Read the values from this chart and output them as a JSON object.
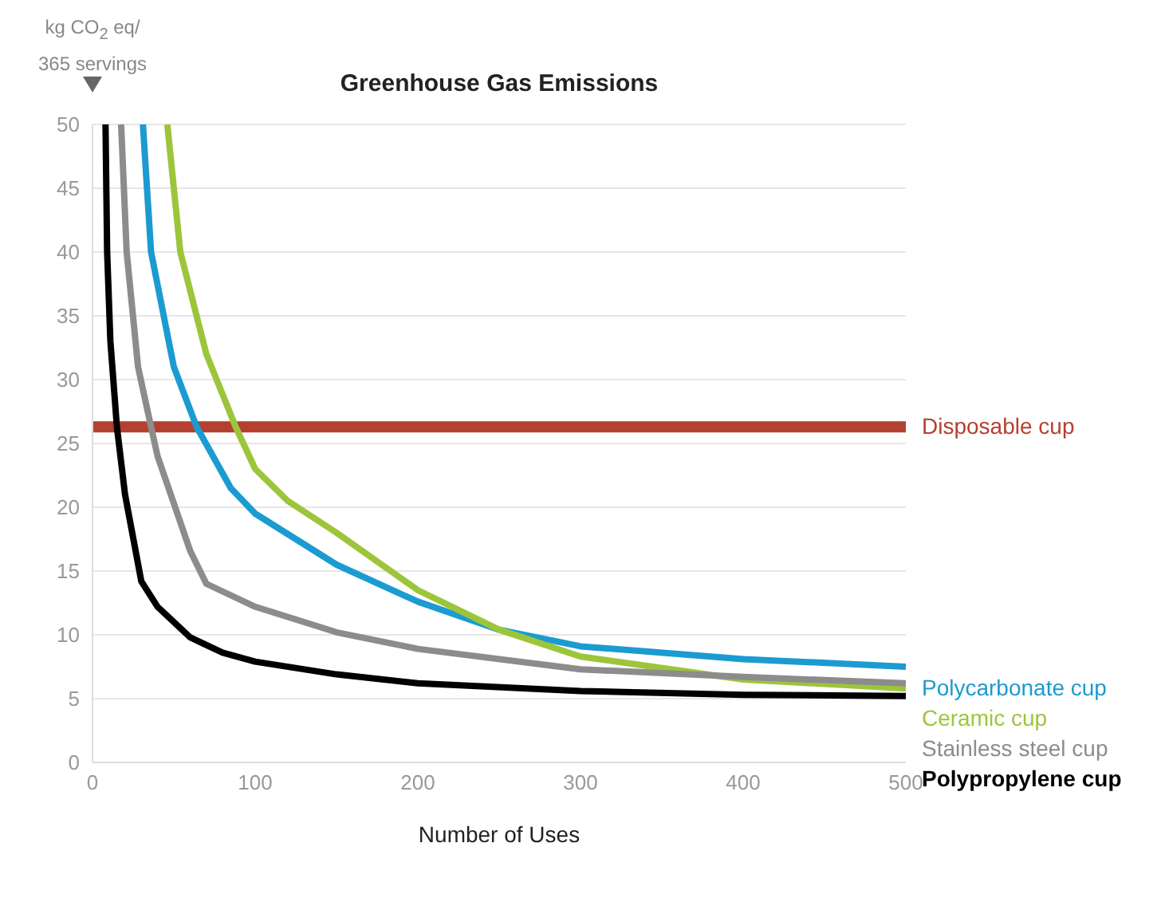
{
  "chart_data": {
    "type": "line",
    "title": "Greenhouse Gas Emissions",
    "xlabel": "Number of Uses",
    "ylabel": "kg CO$_{2}$ eq/365 servings",
    "xlim": [
      0,
      500
    ],
    "xticks": [
      0,
      100,
      200,
      300,
      400,
      500
    ],
    "ylim": [
      0,
      50
    ],
    "yticks": [
      0,
      5,
      10,
      15,
      20,
      25,
      30,
      35,
      40,
      45,
      50
    ],
    "grid": "y",
    "line_style": "solid",
    "marker": "none",
    "ref_lines": [
      {
        "axis": "y",
        "value": 26.3,
        "label": "Disposable cup",
        "color": "#b5402f"
      }
    ],
    "series": [
      {
        "name": "Polycarbonate cup",
        "color": "#1b9bd1",
        "x": [
          31,
          36,
          50,
          64,
          85,
          100,
          150,
          200,
          250,
          300,
          400,
          500
        ],
        "values": [
          50,
          40,
          31,
          26.3,
          21.5,
          19.5,
          15.5,
          12.6,
          10.4,
          9.1,
          8.1,
          7.5
        ]
      },
      {
        "name": "Ceramic cup",
        "color": "#9dc53b",
        "x": [
          46,
          54,
          70,
          88,
          100,
          120,
          150,
          200,
          250,
          300,
          400,
          500
        ],
        "values": [
          50,
          40,
          32,
          26.3,
          23,
          20.5,
          18,
          13.5,
          10.4,
          8.3,
          6.5,
          5.8
        ]
      },
      {
        "name": "Stainless steel cup",
        "color": "#8c8c8c",
        "x": [
          17.6,
          21,
          28,
          36,
          40,
          60,
          70,
          100,
          150,
          200,
          300,
          400,
          500
        ],
        "values": [
          50,
          40,
          31,
          26.3,
          24,
          16.6,
          14,
          12.2,
          10.2,
          8.9,
          7.3,
          6.7,
          6.2
        ]
      },
      {
        "name": "Polypropylene cup",
        "color": "#000000",
        "x": [
          8,
          9,
          11,
          15,
          20,
          30,
          40,
          60,
          80,
          100,
          150,
          200,
          300,
          400,
          500
        ],
        "values": [
          50,
          40,
          33,
          26.3,
          21,
          14.2,
          12.2,
          9.8,
          8.6,
          7.9,
          6.9,
          6.2,
          5.6,
          5.3,
          5.2
        ]
      }
    ]
  }
}
